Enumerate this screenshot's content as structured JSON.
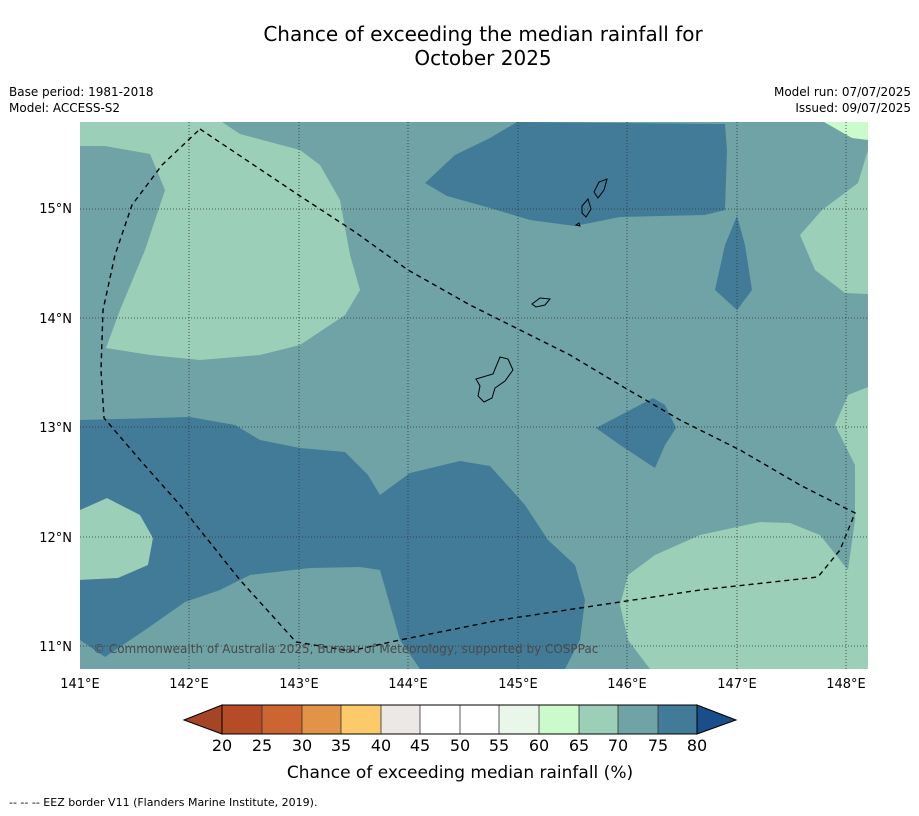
{
  "header": {
    "title_line1": "Chance of exceeding the median rainfall for",
    "title_line2": "October 2025",
    "base_period": "Base period: 1981-2018",
    "model": "Model: ACCESS-S2",
    "model_run": "Model run: 07/07/2025",
    "issued": "Issued: 09/07/2025"
  },
  "map": {
    "longitude_labels": [
      "141°E",
      "142°E",
      "143°E",
      "144°E",
      "145°E",
      "146°E",
      "147°E",
      "148°E"
    ],
    "latitude_labels": [
      "15°N",
      "14°N",
      "13°N",
      "12°N",
      "11°N"
    ],
    "longitude_range": [
      141.0,
      148.2
    ],
    "latitude_range": [
      10.8,
      15.8
    ],
    "copyright": "© Commonwealth of Australia 2025, Bureau of Meteorology, supported by COSPPac",
    "islands": [
      "Guam",
      "Rota",
      "Aguijan",
      "Tinian",
      "Saipan"
    ],
    "eez_line_style": "dashed-black",
    "category_colors": {
      "65-70": "#9ccfb8",
      "70-75": "#6fa3a6",
      "75-80": "#427b98"
    }
  },
  "colorbar": {
    "tick_labels": [
      "20",
      "25",
      "30",
      "35",
      "40",
      "45",
      "50",
      "55",
      "60",
      "65",
      "70",
      "75",
      "80"
    ],
    "colors": [
      "#a44526",
      "#b54b27",
      "#cd6532",
      "#e19448",
      "#fcca6a",
      "#ece8e5",
      "#ffffff",
      "#ffffff",
      "#e8f7ea",
      "#cbfbcd",
      "#9ccfb8",
      "#6fa3a6",
      "#427b98",
      "#1a4e8a"
    ],
    "label": "Chance of exceeding median rainfall (%)"
  },
  "footer": {
    "eez_note": "--  --  -- EEZ border V11 (Flanders Marine Institute, 2019)."
  }
}
